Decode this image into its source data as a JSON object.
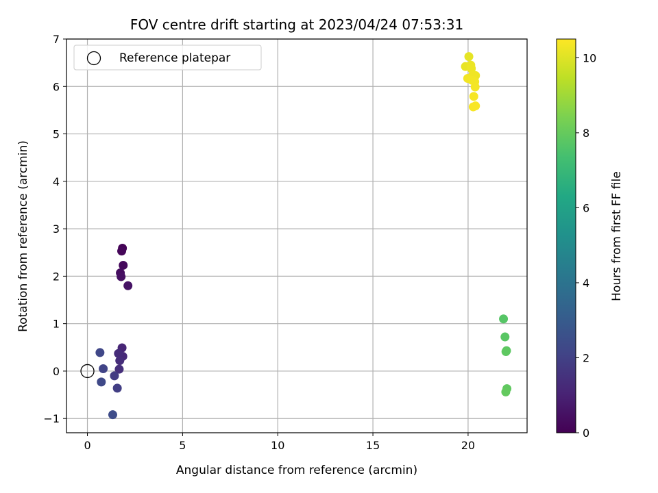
{
  "chart_data": {
    "type": "scatter",
    "title": "FOV centre drift starting at 2023/04/24 07:53:31",
    "xlabel": "Angular distance from reference (arcmin)",
    "ylabel": "Rotation from reference (arcmin)",
    "xlim": [
      -1.1,
      23.1
    ],
    "ylim": [
      -1.3,
      7.0
    ],
    "xticks": [
      0,
      5,
      10,
      15,
      20
    ],
    "yticks": [
      -1,
      0,
      1,
      2,
      3,
      4,
      5,
      6,
      7
    ],
    "xtick_labels": [
      "0",
      "5",
      "10",
      "15",
      "20"
    ],
    "ytick_labels": [
      "−1",
      "0",
      "1",
      "2",
      "3",
      "4",
      "5",
      "6",
      "7"
    ],
    "grid": true,
    "legend": {
      "entries": [
        "Reference platepar"
      ],
      "location": "top-left"
    },
    "reference_point": {
      "name": "Reference platepar",
      "x": 0,
      "y": 0,
      "marker": "open-circle"
    },
    "colorbar": {
      "label": "Hours from first FF file",
      "colormap": "viridis",
      "range": [
        0,
        10.5
      ],
      "ticks": [
        0,
        2,
        4,
        6,
        8,
        10
      ],
      "tick_labels": [
        "0",
        "2",
        "4",
        "6",
        "8",
        "10"
      ]
    },
    "points": [
      {
        "x": 1.84,
        "y": 2.59,
        "c": 0.05
      },
      {
        "x": 1.8,
        "y": 2.53,
        "c": 0.15
      },
      {
        "x": 1.88,
        "y": 2.23,
        "c": 0.25
      },
      {
        "x": 1.73,
        "y": 2.07,
        "c": 0.35
      },
      {
        "x": 1.77,
        "y": 1.99,
        "c": 0.45
      },
      {
        "x": 2.13,
        "y": 1.8,
        "c": 0.55
      },
      {
        "x": 1.82,
        "y": 0.49,
        "c": 1.1
      },
      {
        "x": 1.86,
        "y": 0.31,
        "c": 1.2
      },
      {
        "x": 1.63,
        "y": 0.37,
        "c": 1.3
      },
      {
        "x": 1.7,
        "y": 0.22,
        "c": 1.35
      },
      {
        "x": 1.67,
        "y": 0.04,
        "c": 1.4
      },
      {
        "x": 1.42,
        "y": -0.1,
        "c": 1.8
      },
      {
        "x": 1.57,
        "y": -0.36,
        "c": 1.9
      },
      {
        "x": 0.83,
        "y": 0.05,
        "c": 2.1
      },
      {
        "x": 0.66,
        "y": 0.39,
        "c": 2.2
      },
      {
        "x": 0.73,
        "y": -0.23,
        "c": 2.3
      },
      {
        "x": 1.33,
        "y": -0.92,
        "c": 2.4
      },
      {
        "x": 21.86,
        "y": 1.1,
        "c": 7.7
      },
      {
        "x": 21.94,
        "y": 0.72,
        "c": 7.75
      },
      {
        "x": 22.02,
        "y": 0.43,
        "c": 7.8
      },
      {
        "x": 21.99,
        "y": 0.41,
        "c": 7.85
      },
      {
        "x": 22.04,
        "y": -0.37,
        "c": 7.9
      },
      {
        "x": 21.98,
        "y": -0.44,
        "c": 7.95
      },
      {
        "x": 20.04,
        "y": 6.63,
        "c": 10.1
      },
      {
        "x": 19.86,
        "y": 6.42,
        "c": 10.15
      },
      {
        "x": 20.14,
        "y": 6.45,
        "c": 10.2
      },
      {
        "x": 20.17,
        "y": 6.38,
        "c": 10.22
      },
      {
        "x": 20.39,
        "y": 6.23,
        "c": 10.25
      },
      {
        "x": 20.26,
        "y": 6.25,
        "c": 10.28
      },
      {
        "x": 19.98,
        "y": 6.17,
        "c": 10.3
      },
      {
        "x": 20.21,
        "y": 6.13,
        "c": 10.32
      },
      {
        "x": 20.35,
        "y": 6.1,
        "c": 10.34
      },
      {
        "x": 20.37,
        "y": 5.99,
        "c": 10.36
      },
      {
        "x": 20.3,
        "y": 5.79,
        "c": 10.38
      },
      {
        "x": 20.27,
        "y": 5.57,
        "c": 10.4
      },
      {
        "x": 20.39,
        "y": 5.59,
        "c": 10.42
      }
    ]
  },
  "colors": {
    "grid": "#b0b0b0",
    "axis": "#000000",
    "legend_border": "#cccccc"
  }
}
